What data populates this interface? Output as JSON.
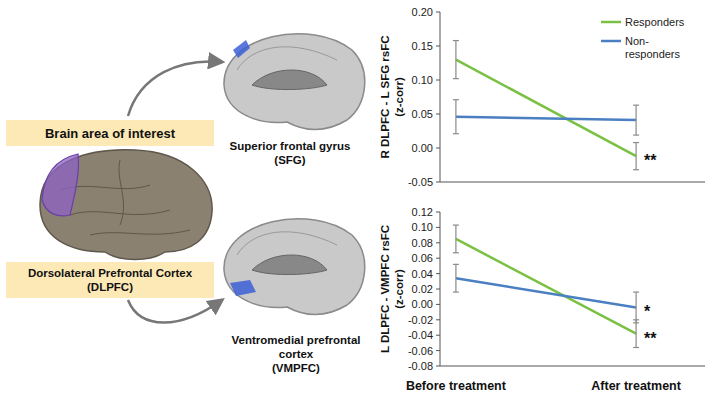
{
  "chart_data": [
    {
      "type": "line",
      "ylabel": "R DLPFC - L SFG rsFC (z-corr)",
      "categories": [
        null,
        null
      ],
      "ylim": [
        -0.05,
        0.2
      ],
      "yticks": [
        -0.05,
        {
          "value": 0,
          "label": "0.00"
        },
        0.05,
        {
          "value": 0.1,
          "label": "0.10"
        },
        0.15,
        {
          "value": 0.2,
          "label": "0.20"
        }
      ],
      "grid": false,
      "legend": "upper right",
      "series": [
        {
          "name": "Responders",
          "color": "#7ac143",
          "values": [
            0.13,
            -0.012
          ],
          "errors": [
            0.028,
            0.02
          ],
          "significance": [
            null,
            "**"
          ]
        },
        {
          "name": "Non-responders",
          "color": "#4a7fc1",
          "values": [
            0.046,
            0.041
          ],
          "errors": [
            0.025,
            0.022
          ],
          "significance": [
            null,
            null
          ]
        }
      ]
    },
    {
      "type": "line",
      "ylabel": "L DLPFC - VMPFC rsFC (z-corr)",
      "categories": [
        "Before treatment",
        "After treatment"
      ],
      "ylim": [
        -0.08,
        0.12
      ],
      "yticks": [
        -0.08,
        -0.06,
        -0.04,
        -0.02,
        {
          "value": 0,
          "label": "0.00"
        },
        0.02,
        0.04,
        0.06,
        0.08,
        {
          "value": 0.1,
          "label": "0.10"
        },
        0.12
      ],
      "grid": false,
      "series": [
        {
          "color": "#7ac143",
          "values": [
            0.085,
            -0.038
          ],
          "errors": [
            0.018,
            0.018
          ],
          "significance": [
            null,
            "**"
          ]
        },
        {
          "color": "#4a7fc1",
          "values": [
            0.034,
            -0.004
          ],
          "errors": [
            0.018,
            0.02
          ],
          "significance": [
            null,
            "*"
          ]
        }
      ]
    }
  ],
  "diagram": {
    "title": "Brain area of interest",
    "source": {
      "lines": [
        "Dorsolateral Prefrontal Cortex",
        "(DLPFC)"
      ]
    },
    "targets": [
      {
        "lines": [
          "Superior frontal gyrus",
          "(SFG)"
        ]
      },
      {
        "lines": [
          "Ventromedial prefrontal",
          "cortex",
          "(VMPFC)"
        ]
      }
    ]
  }
}
